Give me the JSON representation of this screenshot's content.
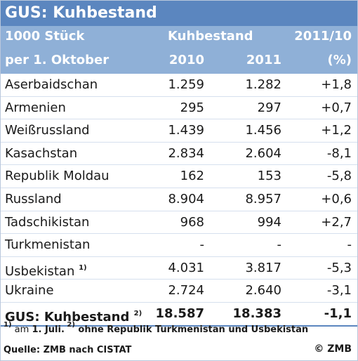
{
  "title": "GUS: Kuhbestand",
  "header": {
    "unit_line1": "1000 Stück",
    "unit_line2": "per 1. Oktober",
    "group_label": "Kuhbestand",
    "change_label": "2011/10",
    "year1": "2010",
    "year2": "2011",
    "change_unit": "(%)"
  },
  "chart_data": {
    "type": "table",
    "title": "GUS: Kuhbestand",
    "columns": [
      "1000 Stück per 1. Oktober",
      "Kuhbestand 2010",
      "Kuhbestand 2011",
      "2011/10 (%)"
    ],
    "rows": [
      {
        "name": "Aserbaidschan",
        "sup": "",
        "v2010": "1.259",
        "v2011": "1.282",
        "change": "+1,8"
      },
      {
        "name": "Armenien",
        "sup": "",
        "v2010": "295",
        "v2011": "297",
        "change": "+0,7"
      },
      {
        "name": "Weißrussland",
        "sup": "",
        "v2010": "1.439",
        "v2011": "1.456",
        "change": "+1,2"
      },
      {
        "name": "Kasachstan",
        "sup": "",
        "v2010": "2.834",
        "v2011": "2.604",
        "change": "-8,1"
      },
      {
        "name": "Republik Moldau",
        "sup": "",
        "v2010": "162",
        "v2011": "153",
        "change": "-5,8"
      },
      {
        "name": "Russland",
        "sup": "",
        "v2010": "8.904",
        "v2011": "8.957",
        "change": "+0,6"
      },
      {
        "name": "Tadschikistan",
        "sup": "",
        "v2010": "968",
        "v2011": "994",
        "change": "+2,7"
      },
      {
        "name": "Turkmenistan",
        "sup": "",
        "v2010": "-",
        "v2011": "-",
        "change": "-"
      },
      {
        "name": "Usbekistan",
        "sup": "1)",
        "v2010": "4.031",
        "v2011": "3.817",
        "change": "-5,3"
      },
      {
        "name": "Ukraine",
        "sup": "",
        "v2010": "2.724",
        "v2011": "2.640",
        "change": "-3,1"
      }
    ],
    "total": {
      "name": "GUS: Kuhbestand",
      "sup": "2)",
      "v2010": "18.587",
      "v2011": "18.383",
      "change": "-1,1"
    }
  },
  "footnote": {
    "mark1": "1)",
    "text1a": " am ",
    "text1b": "1. Juli.",
    "mark2": " 2)",
    "text2": " ohne Republik Turkmenistan und Usbekistan"
  },
  "source": "Quelle: ZMB nach CISTAT",
  "copyright": "© ZMB",
  "colors": {
    "title_bg": "#5b86bf",
    "header_bg": "#8fb0d7"
  }
}
